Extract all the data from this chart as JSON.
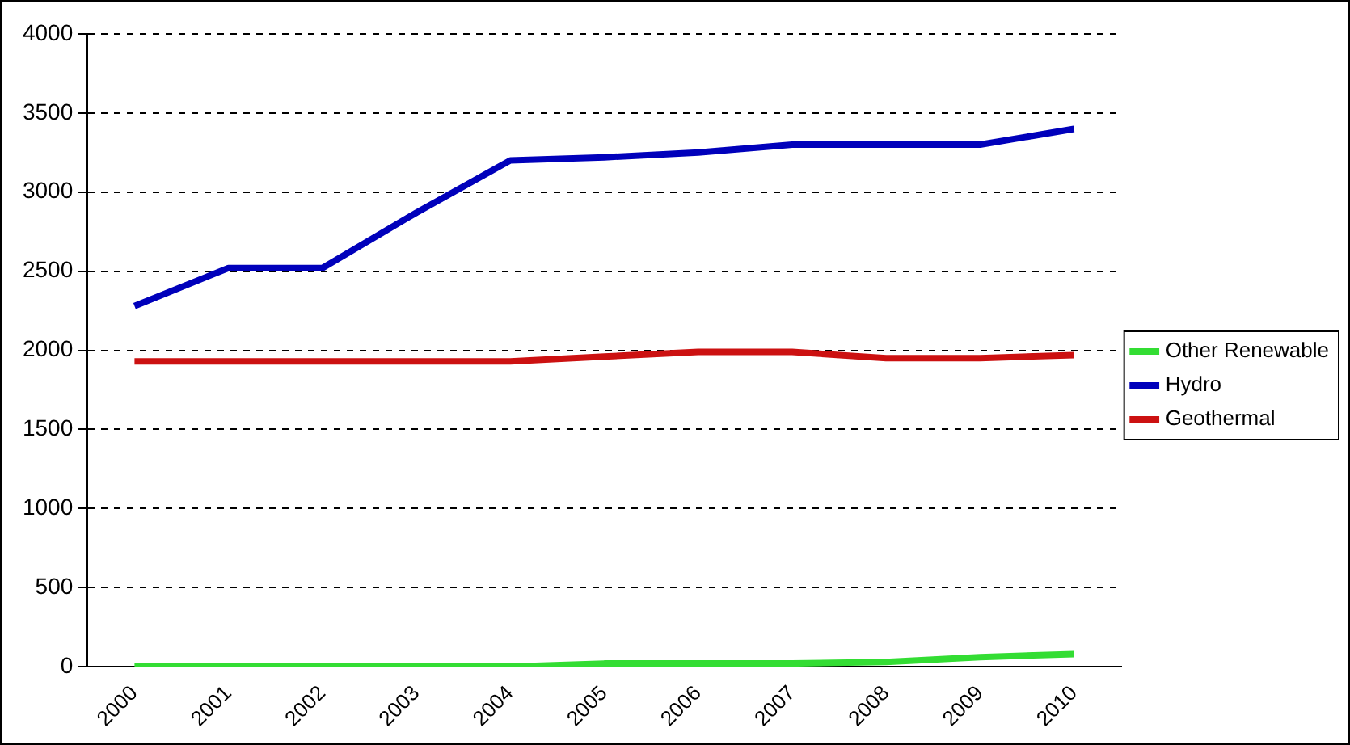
{
  "chart_data": {
    "type": "line",
    "categories": [
      "2000",
      "2001",
      "2002",
      "2003",
      "2004",
      "2005",
      "2006",
      "2007",
      "2008",
      "2009",
      "2010"
    ],
    "series": [
      {
        "name": "Other Renewable",
        "color": "#33dd33",
        "values": [
          0,
          0,
          0,
          0,
          0,
          20,
          20,
          20,
          30,
          60,
          80
        ]
      },
      {
        "name": "Hydro",
        "color": "#0000bb",
        "values": [
          2280,
          2520,
          2520,
          2870,
          3200,
          3220,
          3250,
          3300,
          3300,
          3300,
          3400
        ]
      },
      {
        "name": "Geothermal",
        "color": "#cc1111",
        "values": [
          1930,
          1930,
          1930,
          1930,
          1930,
          1960,
          1990,
          1990,
          1950,
          1950,
          1970
        ]
      }
    ],
    "ylim": [
      0,
      4000
    ],
    "yticks": [
      0,
      500,
      1000,
      1500,
      2000,
      2500,
      3000,
      3500,
      4000
    ],
    "grid": "y",
    "legend": "right",
    "marker": "none",
    "line_style": "solid"
  }
}
